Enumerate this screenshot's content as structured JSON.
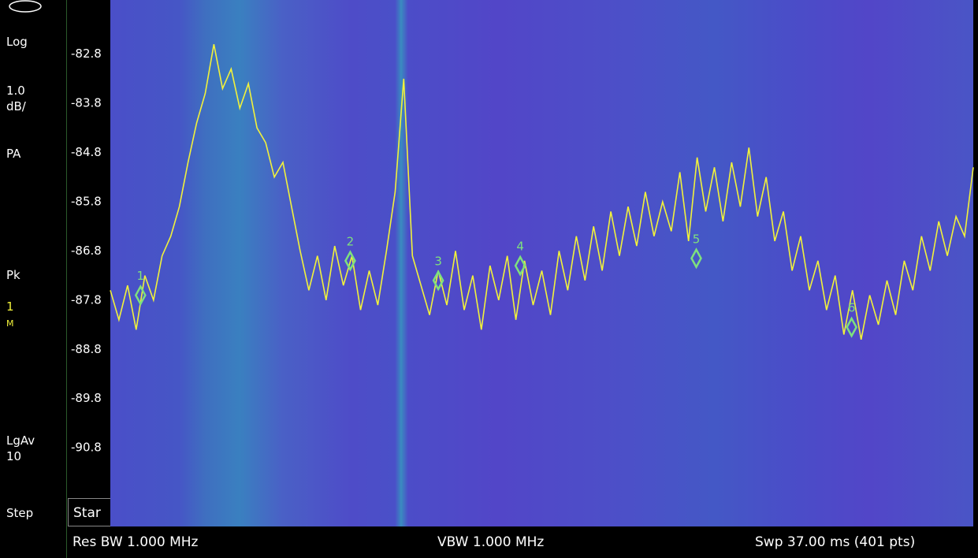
{
  "panel": {
    "scale_type": "Log",
    "scale_value": "1.0",
    "scale_unit": "dB/",
    "mode": "PA",
    "detector": "Pk",
    "trace": "1",
    "trace_mode": "M",
    "average": "LgAv",
    "average_count": "10",
    "step": "Step"
  },
  "footer": {
    "start": "Star",
    "res_bw": "Res BW 1.000 MHz",
    "vbw": "VBW 1.000 MHz",
    "sweep": "Swp 37.00 ms (401 pts)"
  },
  "chart_data": {
    "type": "line",
    "color": "#f2f23a",
    "ylim": [
      -92.4,
      -81.7
    ],
    "yticks": [
      -82.8,
      -83.8,
      -84.8,
      -85.8,
      -86.8,
      -87.8,
      -88.8,
      -89.8,
      -90.8
    ],
    "xlim": [
      0,
      100
    ],
    "values": [
      -87.6,
      -88.2,
      -87.5,
      -88.4,
      -87.3,
      -87.8,
      -86.9,
      -86.5,
      -85.9,
      -85.0,
      -84.2,
      -83.6,
      -82.6,
      -83.5,
      -83.1,
      -83.9,
      -83.4,
      -84.3,
      -84.6,
      -85.3,
      -85.0,
      -85.9,
      -86.8,
      -87.6,
      -86.9,
      -87.8,
      -86.7,
      -87.5,
      -86.9,
      -88.0,
      -87.2,
      -87.9,
      -86.8,
      -85.6,
      -83.3,
      -86.9,
      -87.5,
      -88.1,
      -87.2,
      -87.9,
      -86.8,
      -88.0,
      -87.3,
      -88.4,
      -87.1,
      -87.8,
      -86.9,
      -88.2,
      -87.0,
      -87.9,
      -87.2,
      -88.1,
      -86.8,
      -87.6,
      -86.5,
      -87.4,
      -86.3,
      -87.2,
      -86.0,
      -86.9,
      -85.9,
      -86.7,
      -85.6,
      -86.5,
      -85.8,
      -86.4,
      -85.2,
      -86.6,
      -84.9,
      -86.0,
      -85.1,
      -86.2,
      -85.0,
      -85.9,
      -84.7,
      -86.1,
      -85.3,
      -86.6,
      -86.0,
      -87.2,
      -86.5,
      -87.6,
      -87.0,
      -88.0,
      -87.3,
      -88.5,
      -87.6,
      -88.6,
      -87.7,
      -88.3,
      -87.4,
      -88.1,
      -87.0,
      -87.6,
      -86.5,
      -87.2,
      -86.2,
      -86.9,
      -86.1,
      -86.5,
      -85.1
    ],
    "markers": [
      {
        "label": "1",
        "x": 3.5,
        "y": -87.7
      },
      {
        "label": "2",
        "x": 27.8,
        "y": -87.0
      },
      {
        "label": "3",
        "x": 38.0,
        "y": -87.4
      },
      {
        "label": "4",
        "x": 47.5,
        "y": -87.1
      },
      {
        "label": "5",
        "x": 67.9,
        "y": -86.95
      },
      {
        "label": "6",
        "x": 85.9,
        "y": -88.35
      }
    ]
  }
}
